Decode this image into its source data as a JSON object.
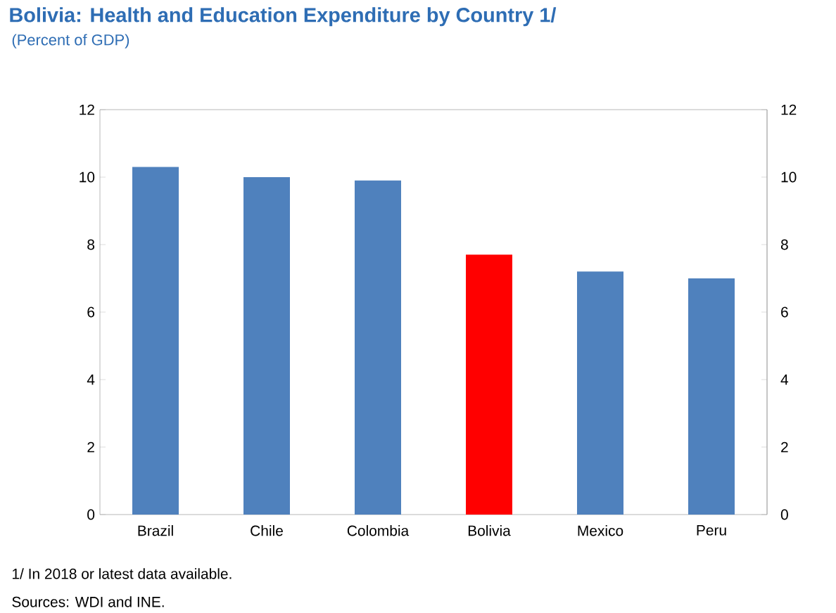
{
  "chart_data": {
    "type": "bar",
    "title": "Bolivia: Health and Education Expenditure by Country 1/",
    "subtitle": "(Percent of GDP)",
    "categories": [
      "Brazil",
      "Chile",
      "Colombia",
      "Bolivia",
      "Mexico",
      "Peru"
    ],
    "values": [
      10.3,
      10.0,
      9.9,
      7.7,
      7.2,
      7.0
    ],
    "colors": [
      "#4f81bd",
      "#4f81bd",
      "#4f81bd",
      "#ff0000",
      "#4f81bd",
      "#4f81bd"
    ],
    "ylim": [
      0,
      12
    ],
    "yticks": [
      0,
      2,
      4,
      6,
      8,
      10,
      12
    ],
    "y2lim": [
      0,
      12
    ],
    "y2ticks": [
      0,
      2,
      4,
      6,
      8,
      10,
      12
    ],
    "annotations": [
      "1/ In 2018 or latest data available.",
      "Sources: WDI and INE."
    ]
  }
}
